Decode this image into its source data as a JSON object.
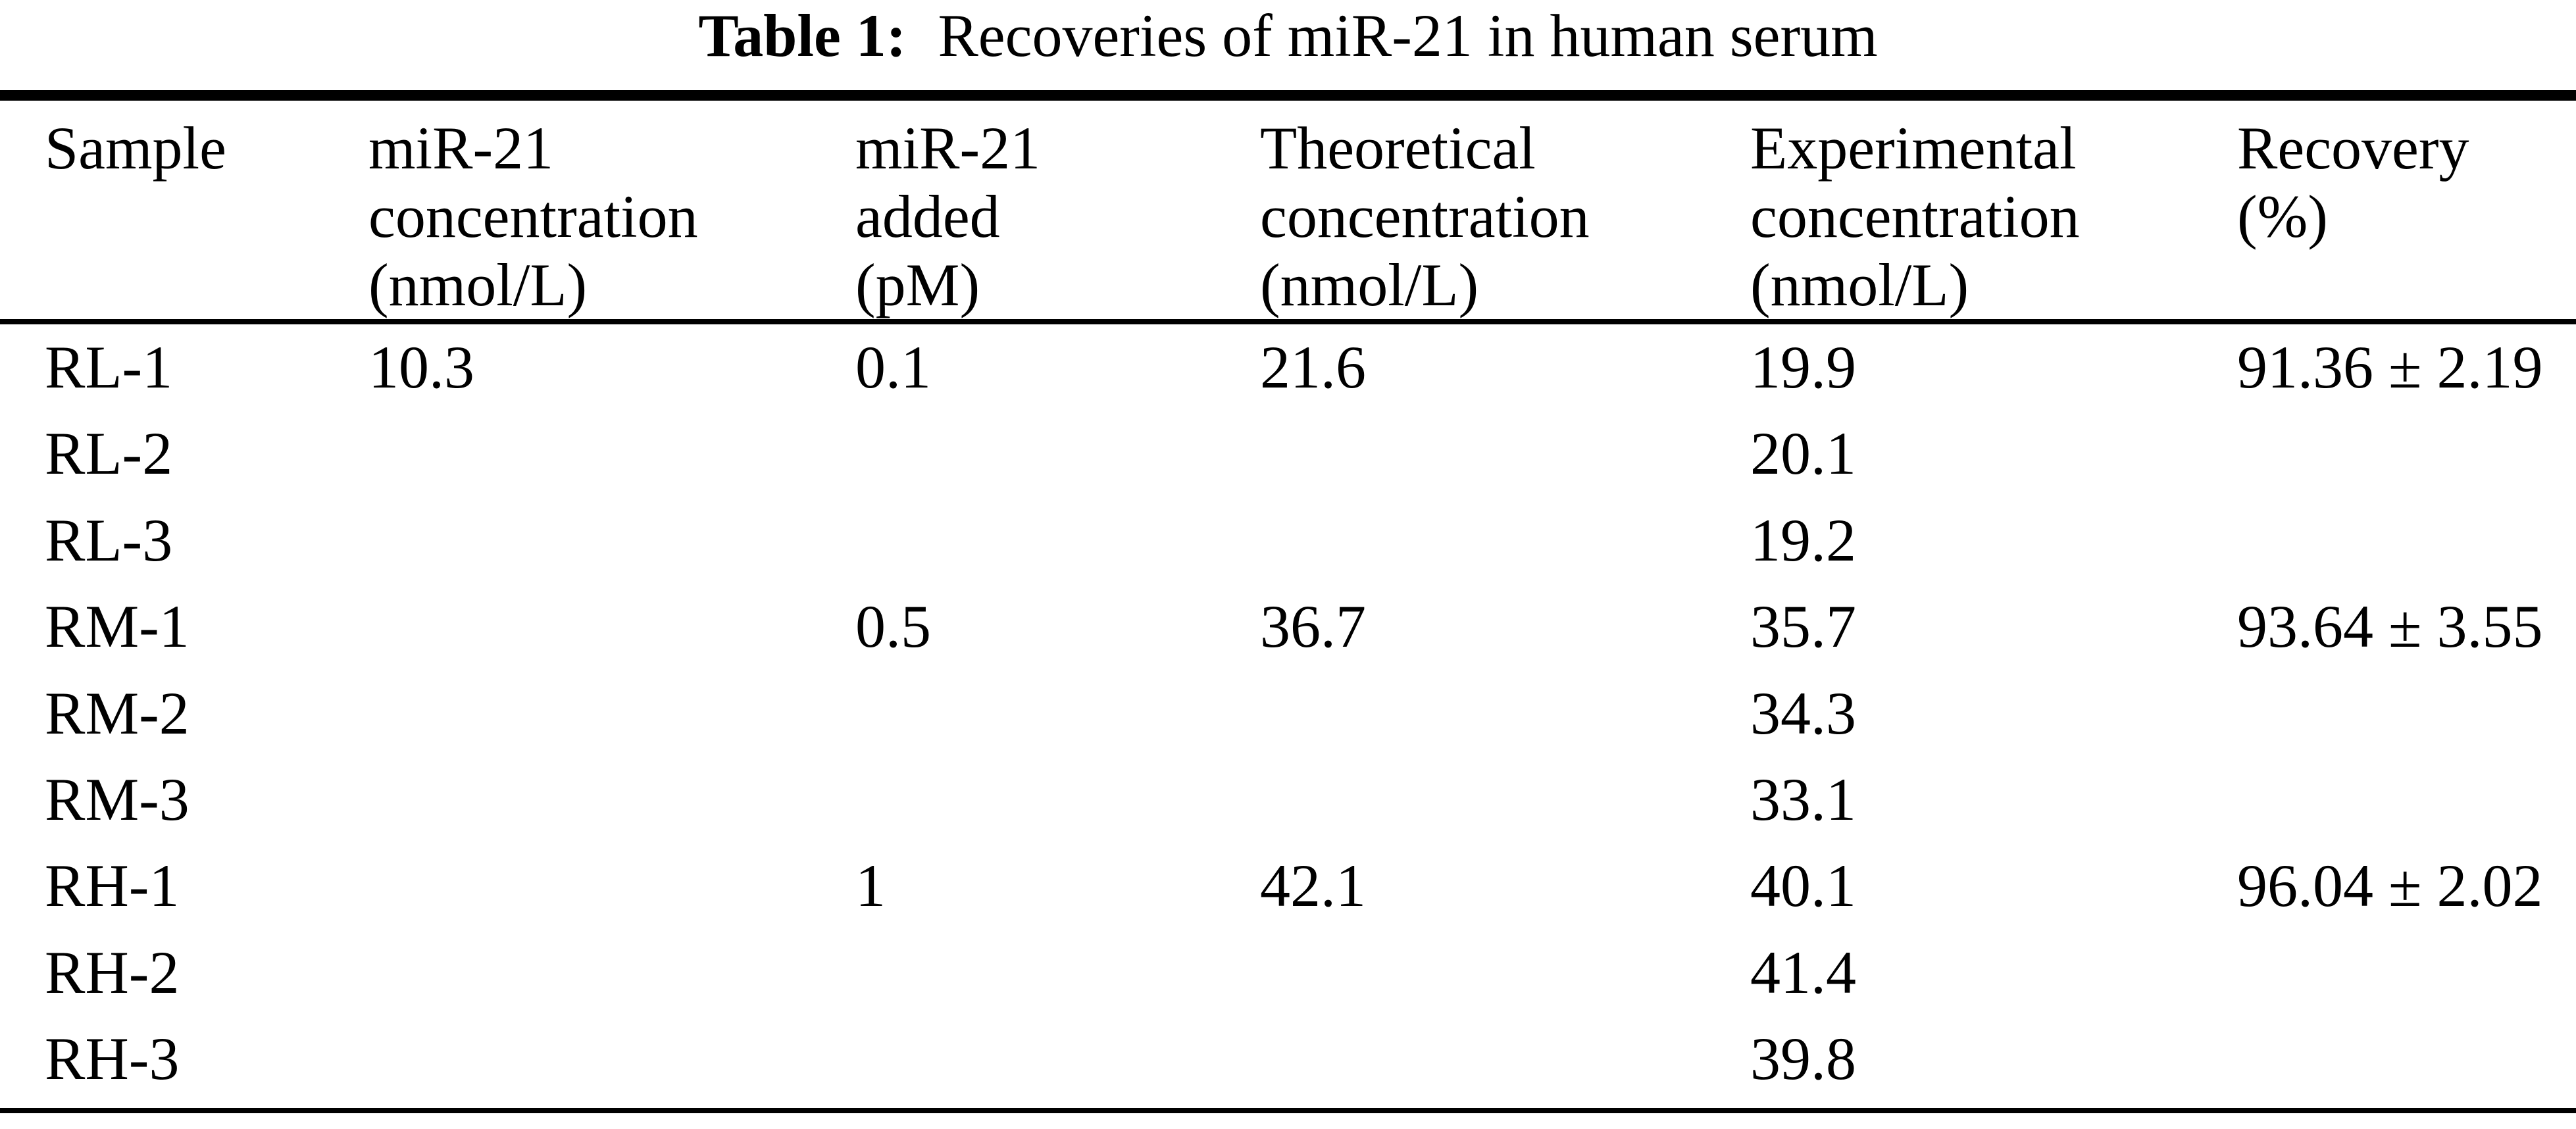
{
  "caption": {
    "label": "Table 1:",
    "text": "Recoveries of miR-21 in human serum"
  },
  "table": {
    "header": [
      {
        "lines": [
          "Sample",
          "",
          ""
        ]
      },
      {
        "lines": [
          "miR-21",
          "concentration",
          "(nmol/L)"
        ]
      },
      {
        "lines": [
          "miR-21",
          "added",
          "(pM)"
        ]
      },
      {
        "lines": [
          "Theoretical",
          "concentration",
          "(nmol/L)"
        ]
      },
      {
        "lines": [
          "Experimental",
          "concentration",
          "(nmol/L)"
        ]
      },
      {
        "lines": [
          "Recovery",
          "(%)",
          ""
        ]
      }
    ],
    "rows": [
      {
        "sample": "RL-1",
        "base_concentration": "10.3",
        "added": "0.1",
        "theoretical": "21.6",
        "experimental": "19.9",
        "recovery": "91.36 ± 2.19"
      },
      {
        "sample": "RL-2",
        "base_concentration": "",
        "added": "",
        "theoretical": "",
        "experimental": "20.1",
        "recovery": ""
      },
      {
        "sample": "RL-3",
        "base_concentration": "",
        "added": "",
        "theoretical": "",
        "experimental": "19.2",
        "recovery": ""
      },
      {
        "sample": "RM-1",
        "base_concentration": "",
        "added": "0.5",
        "theoretical": "36.7",
        "experimental": "35.7",
        "recovery": "93.64 ± 3.55"
      },
      {
        "sample": "RM-2",
        "base_concentration": "",
        "added": "",
        "theoretical": "",
        "experimental": "34.3",
        "recovery": ""
      },
      {
        "sample": "RM-3",
        "base_concentration": "",
        "added": "",
        "theoretical": "",
        "experimental": "33.1",
        "recovery": ""
      },
      {
        "sample": "RH-1",
        "base_concentration": "",
        "added": "1",
        "theoretical": "42.1",
        "experimental": "40.1",
        "recovery": "96.04 ± 2.02"
      },
      {
        "sample": "RH-2",
        "base_concentration": "",
        "added": "",
        "theoretical": "",
        "experimental": "41.4",
        "recovery": ""
      },
      {
        "sample": "RH-3",
        "base_concentration": "",
        "added": "",
        "theoretical": "",
        "experimental": "39.8",
        "recovery": ""
      }
    ]
  }
}
